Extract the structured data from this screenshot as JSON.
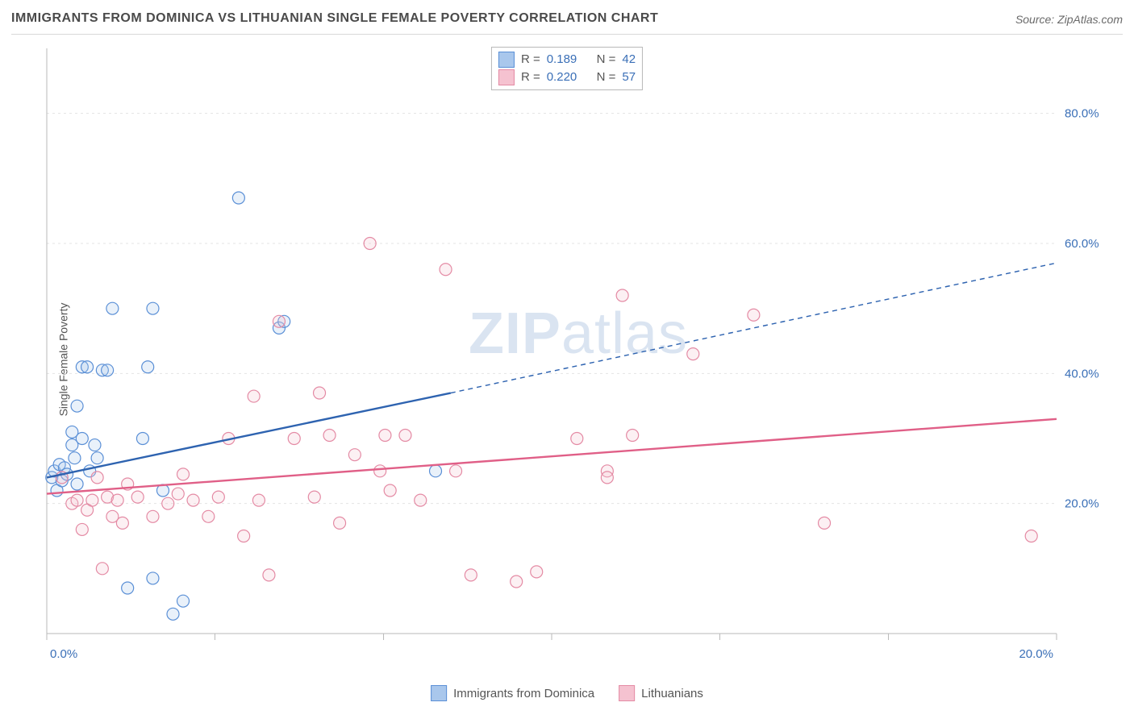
{
  "title": "IMMIGRANTS FROM DOMINICA VS LITHUANIAN SINGLE FEMALE POVERTY CORRELATION CHART",
  "source_label": "Source: ZipAtlas.com",
  "ylabel": "Single Female Poverty",
  "watermark_prefix": "ZIP",
  "watermark_suffix": "atlas",
  "chart": {
    "type": "scatter",
    "background_color": "#ffffff",
    "grid_color": "#e3e3e3",
    "axis_color": "#b8b8b8",
    "tick_label_color": "#3a6fb7",
    "tick_fontsize": 15,
    "xlim": [
      0,
      20
    ],
    "ylim": [
      0,
      90
    ],
    "x_ticks": [
      0,
      20
    ],
    "x_tick_labels": [
      "0.0%",
      "20.0%"
    ],
    "x_minor_ticks": [
      3.33,
      6.67,
      10,
      13.33,
      16.67
    ],
    "y_ticks": [
      20,
      40,
      60,
      80
    ],
    "y_tick_labels": [
      "20.0%",
      "40.0%",
      "60.0%",
      "80.0%"
    ],
    "marker_radius": 7.5,
    "marker_stroke_width": 1.2,
    "marker_fill_opacity": 0.25,
    "series": [
      {
        "name": "Immigrants from Dominica",
        "color_stroke": "#5a8fd6",
        "color_fill": "#a9c7ec",
        "trend": {
          "x1": 0,
          "y1": 24,
          "x2": 8,
          "y2": 37,
          "extend_to_x": 20,
          "extend_to_y": 57,
          "color": "#2e63b0",
          "width": 2.4,
          "dash": "6,5"
        },
        "R": "0.189",
        "N": "42",
        "points": [
          [
            0.1,
            24
          ],
          [
            0.15,
            25
          ],
          [
            0.2,
            22
          ],
          [
            0.25,
            26
          ],
          [
            0.3,
            23.5
          ],
          [
            0.35,
            25.5
          ],
          [
            0.4,
            24.5
          ],
          [
            0.5,
            31
          ],
          [
            0.55,
            27
          ],
          [
            0.5,
            29
          ],
          [
            0.6,
            23
          ],
          [
            0.6,
            35
          ],
          [
            0.7,
            30
          ],
          [
            0.7,
            41
          ],
          [
            0.8,
            41
          ],
          [
            0.85,
            25
          ],
          [
            0.95,
            29
          ],
          [
            1.0,
            27
          ],
          [
            1.1,
            40.5
          ],
          [
            1.2,
            40.5
          ],
          [
            1.3,
            50
          ],
          [
            1.6,
            7
          ],
          [
            1.9,
            30
          ],
          [
            2.0,
            41
          ],
          [
            2.1,
            50
          ],
          [
            2.1,
            8.5
          ],
          [
            2.3,
            22
          ],
          [
            2.5,
            3
          ],
          [
            2.7,
            5
          ],
          [
            3.8,
            67
          ],
          [
            4.6,
            47
          ],
          [
            4.7,
            48
          ],
          [
            7.7,
            25
          ]
        ]
      },
      {
        "name": "Lithuanians",
        "color_stroke": "#e48aa4",
        "color_fill": "#f5c2d0",
        "trend": {
          "x1": 0,
          "y1": 21.5,
          "x2": 20,
          "y2": 33,
          "color": "#e05f87",
          "width": 2.4
        },
        "R": "0.220",
        "N": "57",
        "points": [
          [
            0.3,
            24
          ],
          [
            0.5,
            20
          ],
          [
            0.6,
            20.5
          ],
          [
            0.7,
            16
          ],
          [
            0.8,
            19
          ],
          [
            0.9,
            20.5
          ],
          [
            1.0,
            24
          ],
          [
            1.1,
            10
          ],
          [
            1.2,
            21
          ],
          [
            1.3,
            18
          ],
          [
            1.4,
            20.5
          ],
          [
            1.5,
            17
          ],
          [
            1.6,
            23
          ],
          [
            1.8,
            21
          ],
          [
            2.1,
            18
          ],
          [
            2.4,
            20
          ],
          [
            2.6,
            21.5
          ],
          [
            2.7,
            24.5
          ],
          [
            2.9,
            20.5
          ],
          [
            3.2,
            18
          ],
          [
            3.4,
            21
          ],
          [
            3.6,
            30
          ],
          [
            3.9,
            15
          ],
          [
            4.1,
            36.5
          ],
          [
            4.2,
            20.5
          ],
          [
            4.4,
            9
          ],
          [
            4.6,
            48
          ],
          [
            4.9,
            30
          ],
          [
            5.3,
            21
          ],
          [
            5.4,
            37
          ],
          [
            5.6,
            30.5
          ],
          [
            5.8,
            17
          ],
          [
            6.1,
            27.5
          ],
          [
            6.4,
            60
          ],
          [
            6.6,
            25
          ],
          [
            6.7,
            30.5
          ],
          [
            6.8,
            22
          ],
          [
            7.1,
            30.5
          ],
          [
            7.4,
            20.5
          ],
          [
            7.9,
            56
          ],
          [
            8.1,
            25
          ],
          [
            8.4,
            9
          ],
          [
            9.3,
            8
          ],
          [
            9.7,
            9.5
          ],
          [
            10.5,
            30
          ],
          [
            11.1,
            25
          ],
          [
            11.1,
            24
          ],
          [
            11.4,
            52
          ],
          [
            11.6,
            30.5
          ],
          [
            12.8,
            43
          ],
          [
            14.0,
            49
          ],
          [
            15.4,
            17
          ],
          [
            19.5,
            15
          ]
        ]
      }
    ]
  },
  "top_legend": {
    "r_label": "R  =",
    "n_label": "N  ="
  }
}
